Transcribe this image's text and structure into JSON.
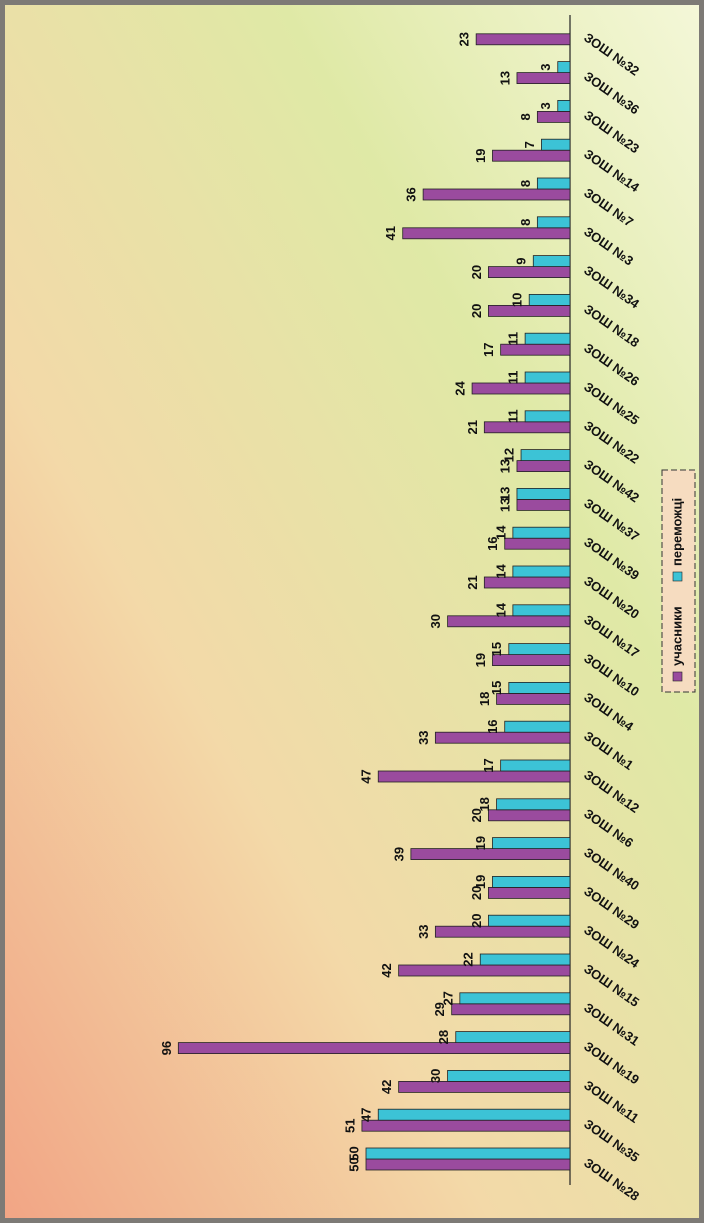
{
  "chart_data": {
    "type": "bar",
    "categories": [
      "ЗОШ №28",
      "ЗОШ №35",
      "ЗОШ №11",
      "ЗОШ №19",
      "ЗОШ №31",
      "ЗОШ №15",
      "ЗОШ №24",
      "ЗОШ №29",
      "ЗОШ №40",
      "ЗОШ №6",
      "ЗОШ №12",
      "ЗОШ №1",
      "ЗОШ №4",
      "ЗОШ №10",
      "ЗОШ №17",
      "ЗОШ №20",
      "ЗОШ №39",
      "ЗОШ №37",
      "ЗОШ №42",
      "ЗОШ №22",
      "ЗОШ №25",
      "ЗОШ №26",
      "ЗОШ №18",
      "ЗОШ №34",
      "ЗОШ №3",
      "ЗОШ №7",
      "ЗОШ №14",
      "ЗОШ №23",
      "ЗОШ №36",
      "ЗОШ №32"
    ],
    "series": [
      {
        "name": "учасники",
        "color": "#9a4b9e",
        "values": [
          50,
          51,
          42,
          96,
          29,
          42,
          33,
          20,
          39,
          20,
          47,
          33,
          18,
          19,
          30,
          21,
          16,
          13,
          13,
          21,
          24,
          17,
          20,
          20,
          41,
          36,
          19,
          8,
          13,
          23
        ]
      },
      {
        "name": "переможці",
        "color": "#3cc3d6",
        "values": [
          50,
          47,
          30,
          28,
          27,
          22,
          20,
          19,
          19,
          18,
          17,
          16,
          15,
          15,
          14,
          14,
          14,
          13,
          12,
          11,
          11,
          11,
          10,
          9,
          8,
          8,
          7,
          3,
          3,
          null
        ]
      }
    ]
  }
}
